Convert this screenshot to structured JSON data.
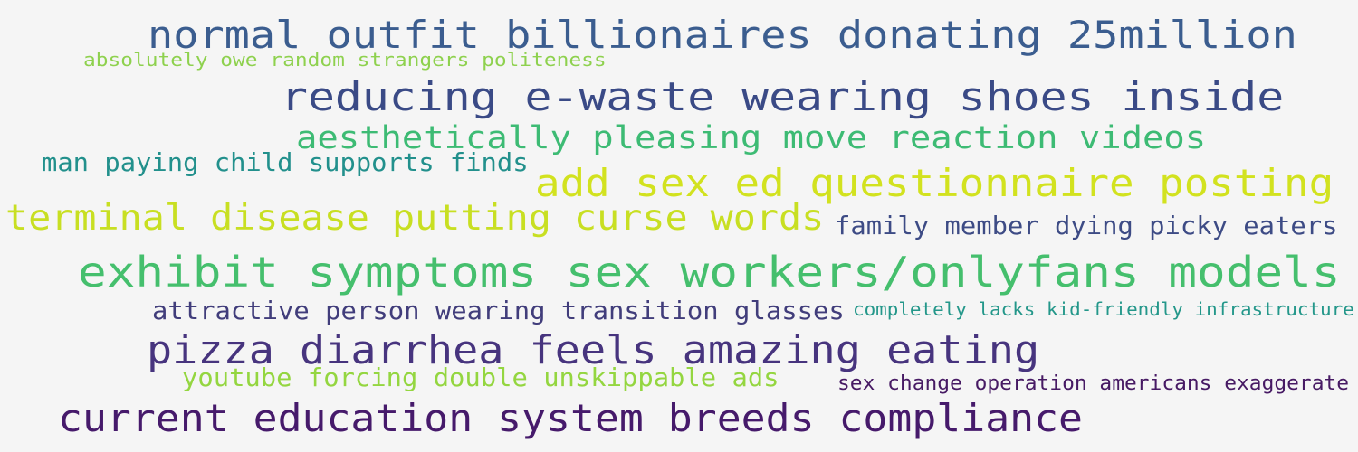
{
  "cloud": {
    "phrases": [
      {
        "text": "normal outfit billionaires donating 25million",
        "color": "#3b5d8f"
      },
      {
        "text": "absolutely owe random strangers politeness",
        "color": "#8ed14e"
      },
      {
        "text": "reducing e-waste wearing shoes inside",
        "color": "#3a4a86"
      },
      {
        "text": "aesthetically pleasing move reaction videos",
        "color": "#3dbb74"
      },
      {
        "text": "man paying child supports finds",
        "color": "#22908c"
      },
      {
        "text": "add sex ed questionnaire posting",
        "color": "#d2e21f"
      },
      {
        "text": "terminal disease putting curse words",
        "color": "#c8df22"
      },
      {
        "text": "family member dying picky eaters",
        "color": "#3d4b85"
      },
      {
        "text": "exhibit symptoms sex workers/onlyfans models",
        "color": "#45bf6d"
      },
      {
        "text": "attractive person wearing transition glasses",
        "color": "#413d7b"
      },
      {
        "text": "completely lacks kid-friendly infrastructure",
        "color": "#24978a"
      },
      {
        "text": "pizza diarrhea feels amazing eating",
        "color": "#47347e"
      },
      {
        "text": "youtube forcing double unskippable ads",
        "color": "#94d640"
      },
      {
        "text": "sex change operation americans exaggerate",
        "color": "#471a64"
      },
      {
        "text": "current education system breeds compliance",
        "color": "#461a6b"
      }
    ]
  }
}
